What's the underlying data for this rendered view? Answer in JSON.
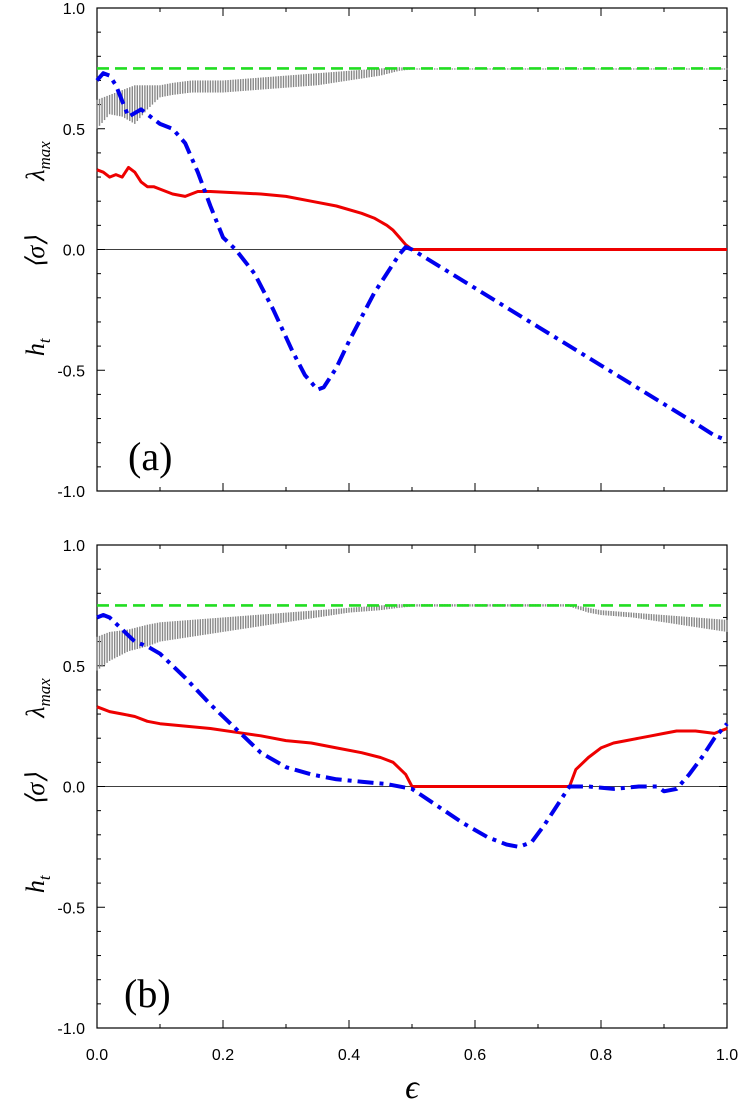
{
  "chart_data": [
    {
      "type": "line",
      "panel_label": "(a)",
      "ylabel_parts": [
        "h",
        "t",
        "⟨σ⟩",
        "λ",
        "max"
      ],
      "xlim": [
        0,
        1
      ],
      "ylim": [
        -1,
        1
      ],
      "x_ticks": [
        0.0,
        0.2,
        0.4,
        0.6,
        0.8,
        1.0
      ],
      "y_tick_labels": [
        "-1.0",
        "-0.5",
        "0.0",
        "0.5",
        "1.0"
      ],
      "y_ticks": [
        -1.0,
        -0.5,
        0.0,
        0.5,
        1.0
      ],
      "zero_line": 0,
      "colors": {
        "green": "#22dd22",
        "gray": "#888888",
        "blue": "#0000ee",
        "red": "#ee0000"
      },
      "series": [
        {
          "key": "green_dashed",
          "style": "dashed",
          "x": [
            0,
            1
          ],
          "y": [
            0.75,
            0.75
          ]
        },
        {
          "key": "gray_band",
          "style": "band",
          "x": [
            0.0,
            0.02,
            0.04,
            0.06,
            0.08,
            0.1,
            0.12,
            0.15,
            0.2,
            0.25,
            0.3,
            0.35,
            0.4,
            0.45,
            0.48,
            0.5,
            1.0
          ],
          "y_low": [
            0.5,
            0.56,
            0.55,
            0.52,
            0.58,
            0.63,
            0.64,
            0.65,
            0.65,
            0.66,
            0.67,
            0.68,
            0.7,
            0.72,
            0.74,
            0.745,
            0.745
          ],
          "y_high": [
            0.62,
            0.64,
            0.66,
            0.68,
            0.68,
            0.68,
            0.69,
            0.7,
            0.7,
            0.71,
            0.72,
            0.73,
            0.74,
            0.75,
            0.755,
            0.75,
            0.75
          ]
        },
        {
          "key": "blue_dashdot",
          "style": "dashdot",
          "x": [
            0.0,
            0.01,
            0.02,
            0.03,
            0.05,
            0.07,
            0.08,
            0.1,
            0.12,
            0.14,
            0.16,
            0.18,
            0.2,
            0.22,
            0.25,
            0.28,
            0.31,
            0.33,
            0.35,
            0.36,
            0.38,
            0.4,
            0.42,
            0.44,
            0.46,
            0.48,
            0.49,
            0.5,
            0.55,
            0.6,
            0.65,
            0.7,
            0.75,
            0.8,
            0.85,
            0.9,
            0.95,
            0.98,
            1.0
          ],
          "y": [
            0.7,
            0.73,
            0.72,
            0.68,
            0.55,
            0.58,
            0.56,
            0.52,
            0.5,
            0.44,
            0.32,
            0.18,
            0.05,
            0.0,
            -0.1,
            -0.25,
            -0.42,
            -0.52,
            -0.58,
            -0.57,
            -0.49,
            -0.38,
            -0.28,
            -0.18,
            -0.1,
            -0.02,
            0.01,
            0.0,
            -0.08,
            -0.16,
            -0.24,
            -0.32,
            -0.4,
            -0.48,
            -0.56,
            -0.64,
            -0.72,
            -0.77,
            -0.79
          ]
        },
        {
          "key": "red_solid",
          "style": "solid",
          "x": [
            0.0,
            0.01,
            0.02,
            0.03,
            0.04,
            0.05,
            0.06,
            0.07,
            0.08,
            0.09,
            0.1,
            0.12,
            0.14,
            0.16,
            0.18,
            0.22,
            0.26,
            0.3,
            0.34,
            0.38,
            0.42,
            0.44,
            0.46,
            0.47,
            0.48,
            0.49,
            0.5,
            1.0
          ],
          "y": [
            0.33,
            0.32,
            0.3,
            0.31,
            0.3,
            0.34,
            0.32,
            0.28,
            0.26,
            0.26,
            0.25,
            0.23,
            0.22,
            0.24,
            0.24,
            0.235,
            0.23,
            0.22,
            0.2,
            0.18,
            0.15,
            0.13,
            0.1,
            0.08,
            0.05,
            0.02,
            0.0,
            0.0
          ]
        }
      ]
    },
    {
      "type": "line",
      "panel_label": "(b)",
      "ylabel_parts": [
        "h",
        "t",
        "⟨σ⟩",
        "λ",
        "max"
      ],
      "xlabel": "ϵ",
      "xlim": [
        0,
        1
      ],
      "ylim": [
        -1,
        1
      ],
      "x_ticks": [
        0.0,
        0.2,
        0.4,
        0.6,
        0.8,
        1.0
      ],
      "x_tick_labels": [
        "0.0",
        "0.2",
        "0.4",
        "0.6",
        "0.8",
        "1.0"
      ],
      "y_ticks": [
        -1.0,
        -0.5,
        0.0,
        0.5,
        1.0
      ],
      "y_tick_labels": [
        "-1.0",
        "-0.5",
        "0.0",
        "0.5",
        "1.0"
      ],
      "zero_line": 0,
      "colors": {
        "green": "#22dd22",
        "gray": "#888888",
        "blue": "#0000ee",
        "red": "#ee0000"
      },
      "series": [
        {
          "key": "green_dashed",
          "style": "dashed",
          "x": [
            0,
            1
          ],
          "y": [
            0.75,
            0.75
          ]
        },
        {
          "key": "gray_band",
          "style": "band",
          "x": [
            0.0,
            0.02,
            0.05,
            0.08,
            0.1,
            0.15,
            0.2,
            0.25,
            0.3,
            0.35,
            0.4,
            0.45,
            0.48,
            0.5,
            0.6,
            0.7,
            0.75,
            0.78,
            0.8,
            0.85,
            0.9,
            0.95,
            1.0
          ],
          "y_low": [
            0.48,
            0.52,
            0.56,
            0.58,
            0.6,
            0.62,
            0.64,
            0.66,
            0.68,
            0.7,
            0.72,
            0.73,
            0.74,
            0.745,
            0.745,
            0.745,
            0.745,
            0.72,
            0.71,
            0.7,
            0.68,
            0.66,
            0.64
          ],
          "y_high": [
            0.62,
            0.64,
            0.65,
            0.67,
            0.68,
            0.69,
            0.7,
            0.71,
            0.72,
            0.73,
            0.74,
            0.75,
            0.755,
            0.755,
            0.755,
            0.755,
            0.755,
            0.74,
            0.73,
            0.72,
            0.71,
            0.7,
            0.69
          ]
        },
        {
          "key": "blue_dashdot",
          "style": "dashdot",
          "x": [
            0.0,
            0.01,
            0.02,
            0.04,
            0.06,
            0.08,
            0.1,
            0.14,
            0.18,
            0.22,
            0.26,
            0.3,
            0.34,
            0.38,
            0.42,
            0.46,
            0.5,
            0.54,
            0.58,
            0.62,
            0.65,
            0.67,
            0.69,
            0.71,
            0.73,
            0.75,
            0.78,
            0.82,
            0.86,
            0.89,
            0.9,
            0.92,
            0.94,
            0.96,
            0.98,
            1.0
          ],
          "y": [
            0.7,
            0.71,
            0.7,
            0.65,
            0.6,
            0.58,
            0.55,
            0.45,
            0.34,
            0.24,
            0.14,
            0.08,
            0.05,
            0.03,
            0.02,
            0.01,
            -0.01,
            -0.08,
            -0.15,
            -0.21,
            -0.24,
            -0.25,
            -0.23,
            -0.16,
            -0.08,
            0.0,
            0.0,
            -0.01,
            0.0,
            0.0,
            -0.02,
            -0.01,
            0.05,
            0.12,
            0.2,
            0.26
          ]
        },
        {
          "key": "red_solid",
          "style": "solid",
          "x": [
            0.0,
            0.01,
            0.02,
            0.04,
            0.06,
            0.08,
            0.1,
            0.14,
            0.18,
            0.22,
            0.26,
            0.3,
            0.34,
            0.38,
            0.42,
            0.45,
            0.47,
            0.49,
            0.5,
            0.75,
            0.76,
            0.78,
            0.8,
            0.82,
            0.84,
            0.86,
            0.88,
            0.9,
            0.92,
            0.95,
            0.98,
            1.0
          ],
          "y": [
            0.33,
            0.32,
            0.31,
            0.3,
            0.29,
            0.27,
            0.26,
            0.25,
            0.24,
            0.225,
            0.21,
            0.19,
            0.18,
            0.16,
            0.14,
            0.12,
            0.1,
            0.05,
            0.0,
            0.0,
            0.07,
            0.12,
            0.16,
            0.18,
            0.19,
            0.2,
            0.21,
            0.22,
            0.23,
            0.23,
            0.22,
            0.24
          ]
        }
      ]
    }
  ]
}
